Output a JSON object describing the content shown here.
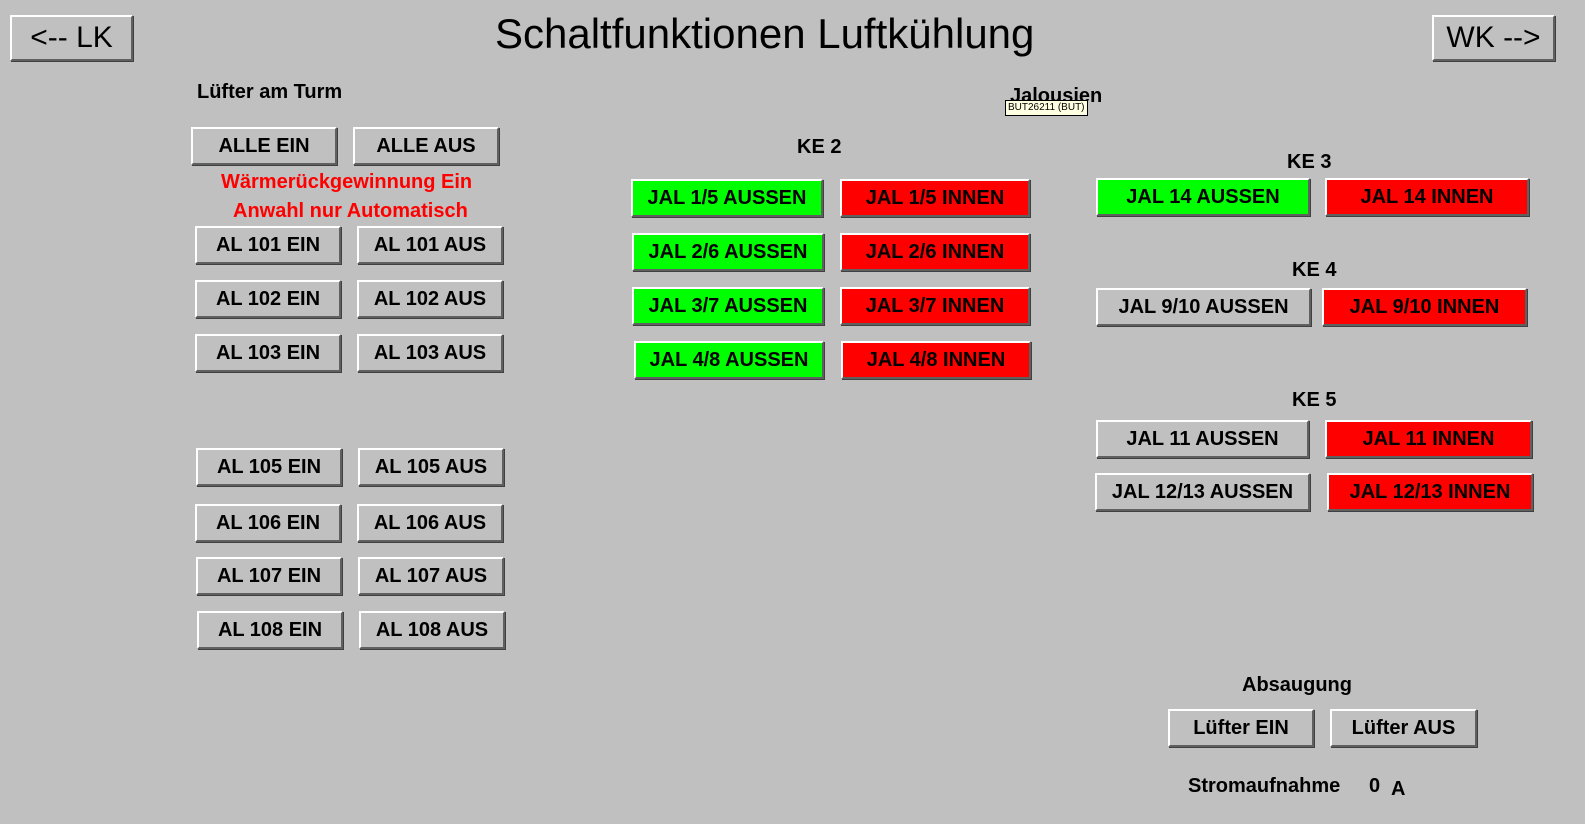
{
  "title": "Schaltfunktionen Luftkühlung",
  "nav": {
    "back_label": "<-- LK",
    "forward_label": "WK -->"
  },
  "luefter": {
    "heading": "Lüfter am Turm",
    "alle_ein": "ALLE EIN",
    "alle_aus": "ALLE AUS",
    "warning1": "Wärmerückgewinnung Ein",
    "warning2": "Anwahl nur Automatisch",
    "rows": [
      {
        "ein": "AL 101 EIN",
        "aus": "AL 101 AUS"
      },
      {
        "ein": "AL 102 EIN",
        "aus": "AL 102 AUS"
      },
      {
        "ein": "AL 103 EIN",
        "aus": "AL 103 AUS"
      },
      {
        "ein": "AL 105 EIN",
        "aus": "AL 105 AUS"
      },
      {
        "ein": "AL 106 EIN",
        "aus": "AL 106 AUS"
      },
      {
        "ein": "AL 107 EIN",
        "aus": "AL 107 AUS"
      },
      {
        "ein": "AL 108 EIN",
        "aus": "AL 108 AUS"
      }
    ]
  },
  "jalousien": {
    "heading": "Jalousien",
    "tooltip": "BUT26211 (BUT)",
    "ke2": {
      "label": "KE 2",
      "rows": [
        {
          "aussen": "JAL 1/5 AUSSEN",
          "innen": "JAL 1/5 INNEN"
        },
        {
          "aussen": "JAL 2/6 AUSSEN",
          "innen": "JAL 2/6 INNEN"
        },
        {
          "aussen": "JAL 3/7 AUSSEN",
          "innen": "JAL 3/7 INNEN"
        },
        {
          "aussen": "JAL 4/8 AUSSEN",
          "innen": "JAL 4/8 INNEN"
        }
      ]
    },
    "ke3": {
      "label": "KE 3",
      "aussen": "JAL 14 AUSSEN",
      "innen": "JAL 14 INNEN"
    },
    "ke4": {
      "label": "KE 4",
      "aussen": "JAL 9/10 AUSSEN",
      "innen": "JAL 9/10 INNEN"
    },
    "ke5": {
      "label": "KE 5",
      "rows": [
        {
          "aussen": "JAL 11 AUSSEN",
          "innen": "JAL 11 INNEN"
        },
        {
          "aussen": "JAL 12/13 AUSSEN",
          "innen": "JAL 12/13 INNEN"
        }
      ]
    }
  },
  "absaugung": {
    "heading": "Absaugung",
    "ein": "Lüfter EIN",
    "aus": "Lüfter AUS",
    "strom_label": "Stromaufnahme",
    "strom_value": "0",
    "strom_unit": "A"
  },
  "colors": {
    "background": "#c0c0c0",
    "active_green": "#00ff00",
    "active_red": "#ff0000",
    "warning_text": "#ff0000"
  }
}
